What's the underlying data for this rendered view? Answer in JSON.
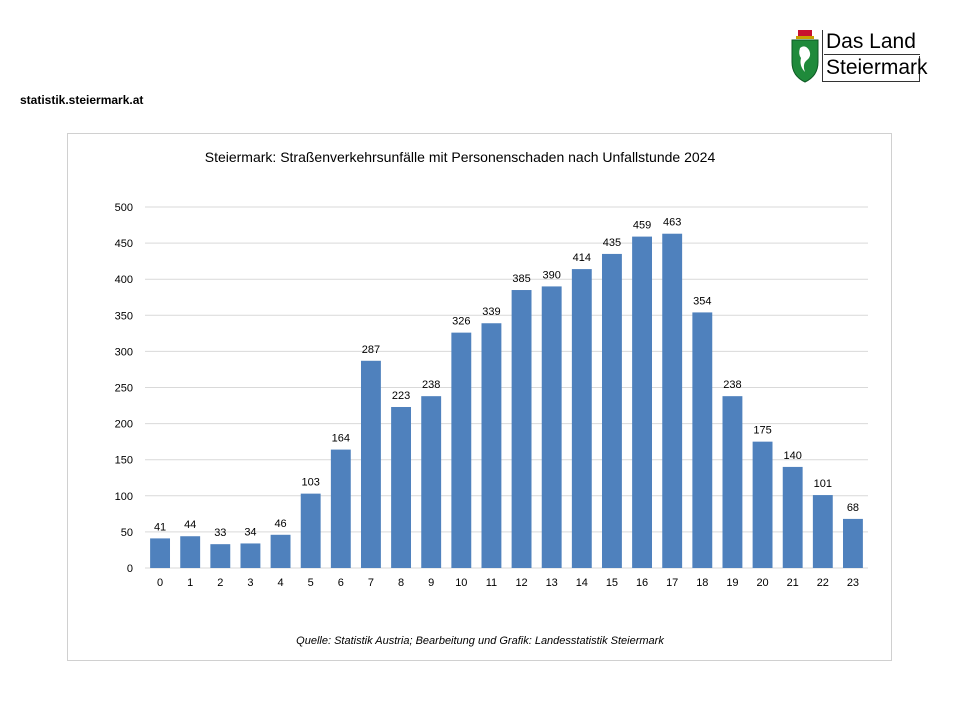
{
  "header": {
    "site_url": "statistik.steiermark.at",
    "logo_line1": "Das Land",
    "logo_line2": "Steiermark"
  },
  "colors": {
    "bar": "#4f81bd",
    "grid": "#d9d9d9",
    "frame": "#d0d0d0"
  },
  "chart_data": {
    "type": "bar",
    "title": "Steiermark: Straßenverkehrsunfälle  mit Personenschaden nach Unfallstunde  2024",
    "source": "Quelle: Statistik Austria; Bearbeitung und Grafik: Landesstatistik Steiermark",
    "categories": [
      "0",
      "1",
      "2",
      "3",
      "4",
      "5",
      "6",
      "7",
      "8",
      "9",
      "10",
      "11",
      "12",
      "13",
      "14",
      "15",
      "16",
      "17",
      "18",
      "19",
      "20",
      "21",
      "22",
      "23"
    ],
    "values": [
      41,
      44,
      33,
      34,
      46,
      103,
      164,
      287,
      223,
      238,
      326,
      339,
      385,
      390,
      414,
      435,
      459,
      463,
      354,
      238,
      175,
      140,
      101,
      68
    ],
    "ylim": [
      0,
      500
    ],
    "yticks": [
      0,
      50,
      100,
      150,
      200,
      250,
      300,
      350,
      400,
      450,
      500
    ],
    "grid": true,
    "legend": "none"
  }
}
